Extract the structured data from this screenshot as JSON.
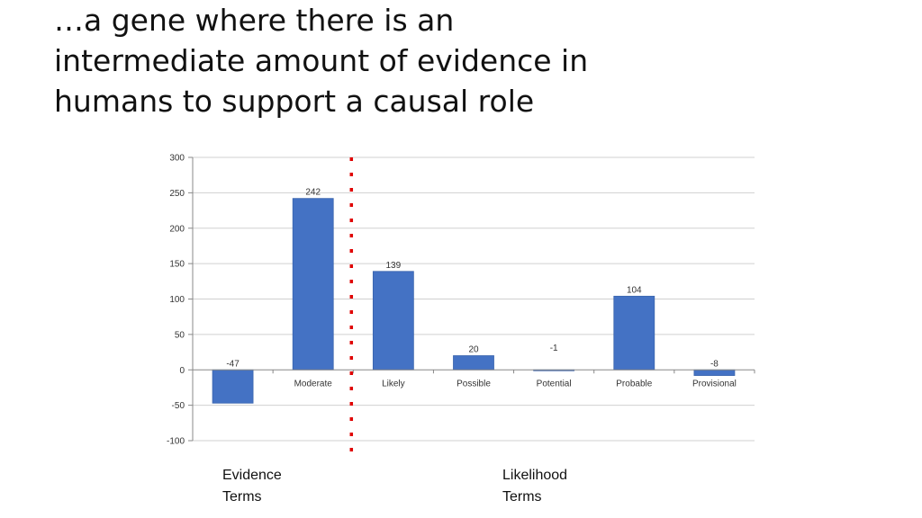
{
  "slide": {
    "title_lines": [
      "…a gene where there is an",
      "intermediate amount of evidence in",
      "humans to support a causal role"
    ]
  },
  "captions": {
    "left": [
      "Evidence",
      "Terms"
    ],
    "right": [
      "Likelihood",
      "Terms"
    ]
  },
  "chart_data": {
    "type": "bar",
    "categories": [
      "",
      "Moderate",
      "Likely",
      "Possible",
      "Potential",
      "Probable",
      "Provisional"
    ],
    "values": [
      -47,
      242,
      139,
      20,
      -1,
      104,
      -8
    ],
    "data_labels": [
      "-47",
      "242",
      "139",
      "20",
      "-1",
      "104",
      "-8"
    ],
    "ylim": [
      -100,
      300
    ],
    "yticks": [
      -100,
      -50,
      0,
      50,
      100,
      150,
      200,
      250,
      300
    ],
    "grid": true,
    "legend": "none",
    "divider_after_category_index": 1,
    "colors": {
      "bar": "#4472c4",
      "bar_edge": "#3a64ad",
      "divider": "#e00000",
      "grid": "#d0d0d0",
      "text": "#333333"
    }
  }
}
